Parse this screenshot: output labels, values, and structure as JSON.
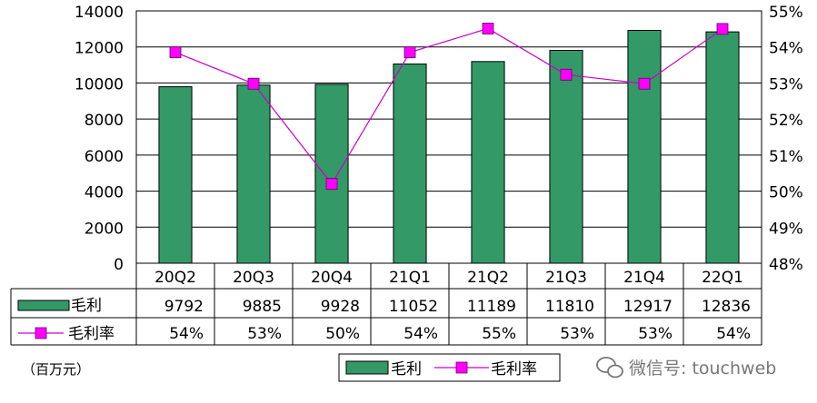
{
  "chart_data": {
    "type": "bar",
    "categories": [
      "20Q2",
      "20Q3",
      "20Q4",
      "21Q1",
      "21Q2",
      "21Q3",
      "21Q4",
      "22Q1"
    ],
    "series": [
      {
        "name": "毛利",
        "type": "bar",
        "axis": "left",
        "color": "#339966",
        "values": [
          9792,
          9885,
          9928,
          11052,
          11189,
          11810,
          12917,
          12836
        ]
      },
      {
        "name": "毛利率",
        "type": "line",
        "axis": "right",
        "color": "#cc00cc",
        "marker_color": "#ff00ff",
        "values": [
          53.85,
          52.98,
          50.2,
          53.85,
          54.51,
          53.23,
          52.98,
          54.5
        ]
      }
    ],
    "table_values": {
      "毛利": [
        "9792",
        "9885",
        "9928",
        "11052",
        "11189",
        "11810",
        "12917",
        "12836"
      ],
      "毛利率": [
        "54%",
        "53%",
        "50%",
        "54%",
        "55%",
        "53%",
        "53%",
        "54%"
      ]
    },
    "y_left": {
      "ylim": [
        0,
        14000
      ],
      "ticks": [
        "0",
        "2000",
        "4000",
        "6000",
        "8000",
        "10000",
        "12000",
        "14000"
      ]
    },
    "y_right": {
      "ylim": [
        48,
        55
      ],
      "ticks": [
        "48%",
        "49%",
        "50%",
        "51%",
        "52%",
        "53%",
        "54%",
        "55%"
      ]
    },
    "unit_note": "（百万元）",
    "watermark": "微信号: touchweb",
    "legend": {
      "position": "bottom",
      "items": [
        "毛利",
        "毛利率"
      ]
    },
    "grid": true
  }
}
